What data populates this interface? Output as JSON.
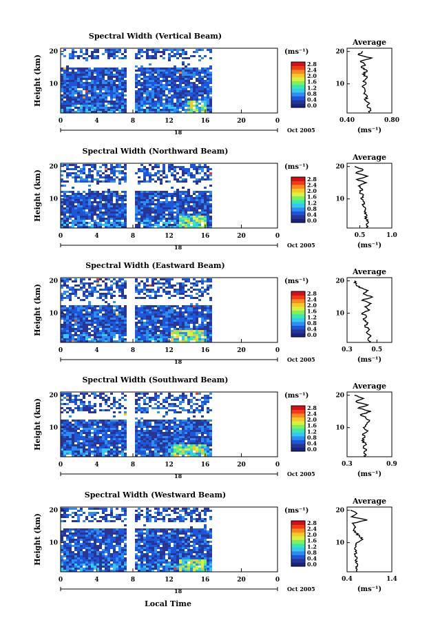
{
  "figure": {
    "xlabel": "Local Time",
    "date_label": "Oct 2005",
    "day_label": "18",
    "avg_title": "Average",
    "unit_label": "(ms⁻¹)",
    "ylabel": "Height (km)",
    "colorbar_ticks": [
      "0.0",
      "0.4",
      "0.8",
      "1.2",
      "1.6",
      "2.0",
      "2.4",
      "2.8"
    ],
    "colormap": [
      "#1a237e",
      "#283593",
      "#1e56d9",
      "#2f8cf0",
      "#36c8f0",
      "#38e8b0",
      "#7ef060",
      "#d8f040",
      "#f8c828",
      "#f88820",
      "#f03c14",
      "#d0101a"
    ]
  },
  "chart_data": [
    {
      "type": "heatmap",
      "title": "Spectral Width (Vertical Beam)",
      "x_ticks": [
        "0",
        "4",
        "8",
        "12",
        "16",
        "20",
        "0"
      ],
      "y_ticks": [
        "20",
        "10"
      ],
      "xlim": [
        0,
        24
      ],
      "ylim": [
        1,
        21
      ],
      "data_extent_hours": [
        0,
        16.5
      ],
      "gap_hours": [
        7.6,
        8.0
      ],
      "clear_band_km": [
        15.5,
        18.0
      ],
      "hotspot_hours": [
        14,
        16
      ],
      "average": {
        "title": "Average",
        "x_ticks": [
          "0.40",
          "0.80"
        ],
        "xlim": [
          0.4,
          0.8
        ],
        "profile": [
          [
            1,
            0.6
          ],
          [
            2,
            0.61
          ],
          [
            3,
            0.58
          ],
          [
            4,
            0.6
          ],
          [
            5,
            0.56
          ],
          [
            6,
            0.58
          ],
          [
            7,
            0.55
          ],
          [
            8,
            0.56
          ],
          [
            9,
            0.54
          ],
          [
            10,
            0.57
          ],
          [
            11,
            0.55
          ],
          [
            12,
            0.58
          ],
          [
            13,
            0.54
          ],
          [
            14,
            0.58
          ],
          [
            15,
            0.53
          ],
          [
            16,
            0.56
          ],
          [
            17,
            0.52
          ],
          [
            18,
            0.62
          ],
          [
            19,
            0.5
          ],
          [
            20,
            0.54
          ]
        ]
      }
    },
    {
      "type": "heatmap",
      "title": "Spectral Width (Northward Beam)",
      "x_ticks": [
        "0",
        "4",
        "8",
        "12",
        "16",
        "20",
        "0"
      ],
      "y_ticks": [
        "20",
        "10"
      ],
      "xlim": [
        0,
        24
      ],
      "ylim": [
        1,
        21
      ],
      "data_extent_hours": [
        0,
        16.5
      ],
      "gap_hours": [
        7.6,
        8.0
      ],
      "clear_band_km": [
        13.0,
        15.5
      ],
      "hotspot_hours": [
        13,
        16
      ],
      "average": {
        "title": "Average",
        "x_ticks": [
          "0.5",
          "1.0"
        ],
        "xlim": [
          0.3,
          1.0
        ],
        "profile": [
          [
            1,
            0.62
          ],
          [
            2,
            0.6
          ],
          [
            3,
            0.63
          ],
          [
            4,
            0.58
          ],
          [
            5,
            0.61
          ],
          [
            6,
            0.57
          ],
          [
            7,
            0.59
          ],
          [
            8,
            0.55
          ],
          [
            9,
            0.57
          ],
          [
            10,
            0.52
          ],
          [
            11,
            0.55
          ],
          [
            12,
            0.5
          ],
          [
            13,
            0.54
          ],
          [
            14,
            0.48
          ],
          [
            15,
            0.6
          ],
          [
            16,
            0.45
          ],
          [
            17,
            0.62
          ],
          [
            18,
            0.44
          ],
          [
            19,
            0.55
          ],
          [
            20,
            0.42
          ]
        ]
      }
    },
    {
      "type": "heatmap",
      "title": "Spectral Width (Eastward Beam)",
      "x_ticks": [
        "0",
        "4",
        "8",
        "12",
        "16",
        "20",
        "0"
      ],
      "y_ticks": [
        "20",
        "10"
      ],
      "xlim": [
        0,
        24
      ],
      "ylim": [
        1,
        21
      ],
      "data_extent_hours": [
        0,
        16.5
      ],
      "gap_hours": [
        7.6,
        8.0
      ],
      "clear_band_km": [
        12.5,
        15.0
      ],
      "hotspot_hours": [
        12,
        16
      ],
      "average": {
        "title": "Average",
        "x_ticks": [
          "0.3",
          "0.5"
        ],
        "xlim": [
          0.3,
          0.6
        ],
        "profile": [
          [
            1,
            0.45
          ],
          [
            2,
            0.44
          ],
          [
            3,
            0.46
          ],
          [
            4,
            0.43
          ],
          [
            5,
            0.45
          ],
          [
            6,
            0.42
          ],
          [
            7,
            0.44
          ],
          [
            8,
            0.41
          ],
          [
            9,
            0.43
          ],
          [
            10,
            0.4
          ],
          [
            11,
            0.45
          ],
          [
            12,
            0.42
          ],
          [
            13,
            0.46
          ],
          [
            14,
            0.4
          ],
          [
            15,
            0.47
          ],
          [
            16,
            0.41
          ],
          [
            17,
            0.44
          ],
          [
            18,
            0.38
          ],
          [
            19,
            0.36
          ],
          [
            20,
            0.35
          ]
        ]
      }
    },
    {
      "type": "heatmap",
      "title": "Spectral Width (Southward Beam)",
      "x_ticks": [
        "0",
        "4",
        "8",
        "12",
        "16",
        "20",
        "0"
      ],
      "y_ticks": [
        "20",
        "10"
      ],
      "xlim": [
        0,
        24
      ],
      "ylim": [
        1,
        21
      ],
      "data_extent_hours": [
        0,
        16.5
      ],
      "gap_hours": [
        7.6,
        8.0
      ],
      "clear_band_km": [
        13.0,
        15.0
      ],
      "hotspot_hours": [
        12,
        16
      ],
      "average": {
        "title": "Average",
        "x_ticks": [
          "0.3",
          "0.9"
        ],
        "xlim": [
          0.3,
          0.9
        ],
        "profile": [
          [
            1,
            0.55
          ],
          [
            2,
            0.53
          ],
          [
            3,
            0.56
          ],
          [
            4,
            0.52
          ],
          [
            5,
            0.55
          ],
          [
            6,
            0.5
          ],
          [
            7,
            0.54
          ],
          [
            8,
            0.51
          ],
          [
            9,
            0.58
          ],
          [
            10,
            0.52
          ],
          [
            11,
            0.56
          ],
          [
            12,
            0.6
          ],
          [
            13,
            0.55
          ],
          [
            14,
            0.48
          ],
          [
            15,
            0.62
          ],
          [
            16,
            0.45
          ],
          [
            17,
            0.58
          ],
          [
            18,
            0.42
          ],
          [
            19,
            0.52
          ],
          [
            20,
            0.4
          ]
        ]
      }
    },
    {
      "type": "heatmap",
      "title": "Spectral Width (Westward Beam)",
      "x_ticks": [
        "0",
        "4",
        "8",
        "12",
        "16",
        "20",
        "0"
      ],
      "y_ticks": [
        "20",
        "10"
      ],
      "xlim": [
        0,
        24
      ],
      "ylim": [
        1,
        21
      ],
      "data_extent_hours": [
        0,
        16.5
      ],
      "gap_hours": [
        7.6,
        8.0
      ],
      "clear_band_km": [
        14.5,
        16.5
      ],
      "hotspot_hours": [
        13,
        16
      ],
      "average": {
        "title": "Average",
        "x_ticks": [
          "0.4",
          "1.4"
        ],
        "xlim": [
          0.4,
          1.4
        ],
        "profile": [
          [
            1,
            0.62
          ],
          [
            2,
            0.6
          ],
          [
            3,
            0.63
          ],
          [
            4,
            0.59
          ],
          [
            5,
            0.62
          ],
          [
            6,
            0.58
          ],
          [
            7,
            0.61
          ],
          [
            8,
            0.57
          ],
          [
            9,
            0.6
          ],
          [
            10,
            0.62
          ],
          [
            11,
            0.75
          ],
          [
            12,
            0.68
          ],
          [
            13,
            0.6
          ],
          [
            14,
            0.55
          ],
          [
            15,
            0.58
          ],
          [
            16,
            0.52
          ],
          [
            17,
            0.85
          ],
          [
            18,
            0.5
          ],
          [
            19,
            0.62
          ],
          [
            20,
            0.48
          ]
        ]
      }
    }
  ]
}
